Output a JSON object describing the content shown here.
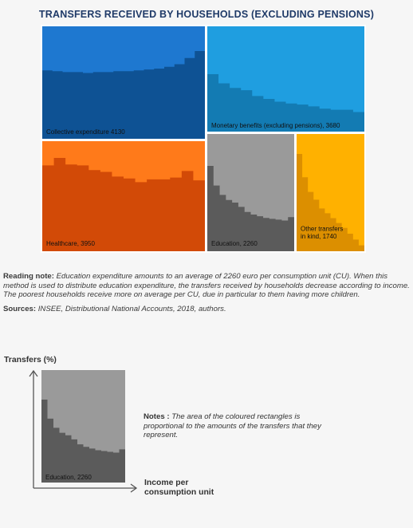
{
  "title": "TRANSFERS RECEIVED BY HOUSEHOLDS (EXCLUDING PENSIONS)",
  "chart_data": {
    "type": "treemap",
    "title": "TRANSFERS RECEIVED BY HOUSEHOLDS (EXCLUDING PENSIONS)",
    "unit": "euro per consumption unit",
    "blocks": [
      {
        "label": "Collective expenditure 4130",
        "value": 4130,
        "color_light": "#1e78d0",
        "color_dark": "#0e5294",
        "profile": [
          0.78,
          0.77,
          0.76,
          0.76,
          0.75,
          0.76,
          0.76,
          0.77,
          0.77,
          0.78,
          0.79,
          0.8,
          0.82,
          0.85,
          0.92,
          1.0
        ]
      },
      {
        "label": "Monetary benefits (excluding pensions), 3680",
        "value": 3680,
        "color_light": "#1f9ee0",
        "color_dark": "#137bb3",
        "profile": [
          1.0,
          0.84,
          0.76,
          0.72,
          0.62,
          0.57,
          0.52,
          0.49,
          0.47,
          0.44,
          0.4,
          0.38,
          0.38,
          0.34
        ]
      },
      {
        "label": "Healthcare, 3950",
        "value": 3950,
        "color_light": "#ff7a1a",
        "color_dark": "#d24a07",
        "profile": [
          0.92,
          1.0,
          0.93,
          0.92,
          0.87,
          0.85,
          0.8,
          0.78,
          0.74,
          0.77,
          0.77,
          0.79,
          0.86,
          0.76
        ]
      },
      {
        "label": "Education, 2260",
        "value": 2260,
        "color_light": "#9a9a9a",
        "color_dark": "#5b5b5b",
        "profile": [
          1.0,
          0.77,
          0.66,
          0.6,
          0.57,
          0.52,
          0.46,
          0.43,
          0.41,
          0.39,
          0.38,
          0.37,
          0.36,
          0.4
        ]
      },
      {
        "label_lines": [
          "Other transfers",
          "in kind, 1740"
        ],
        "value": 1740,
        "color_light": "#ffb100",
        "color_dark": "#dc8f00",
        "profile": [
          1.0,
          0.76,
          0.61,
          0.53,
          0.44,
          0.39,
          0.34,
          0.29,
          0.24,
          0.18,
          0.12,
          0.06
        ]
      }
    ]
  },
  "reading_note": {
    "label": "Reading note:",
    "text": "Education expenditure amounts to an average of 2260 euro per consumption unit (CU). When this method is used to distribute education expenditure, the transfers received by households decrease according to income. The poorest households receive more on average per CU, due in particular to them having more children."
  },
  "sources": {
    "label": "Sources:",
    "text": "INSEE, Distributional National Accounts, 2018, authors."
  },
  "legend": {
    "y_axis_label": "Transfers (%)",
    "x_axis_label": "Income per consumption unit",
    "example_label": "Education, 2260",
    "notes_label": "Notes :",
    "notes_text": "The area of the coloured rectangles is proportional to the amounts of the transfers that they represent."
  }
}
